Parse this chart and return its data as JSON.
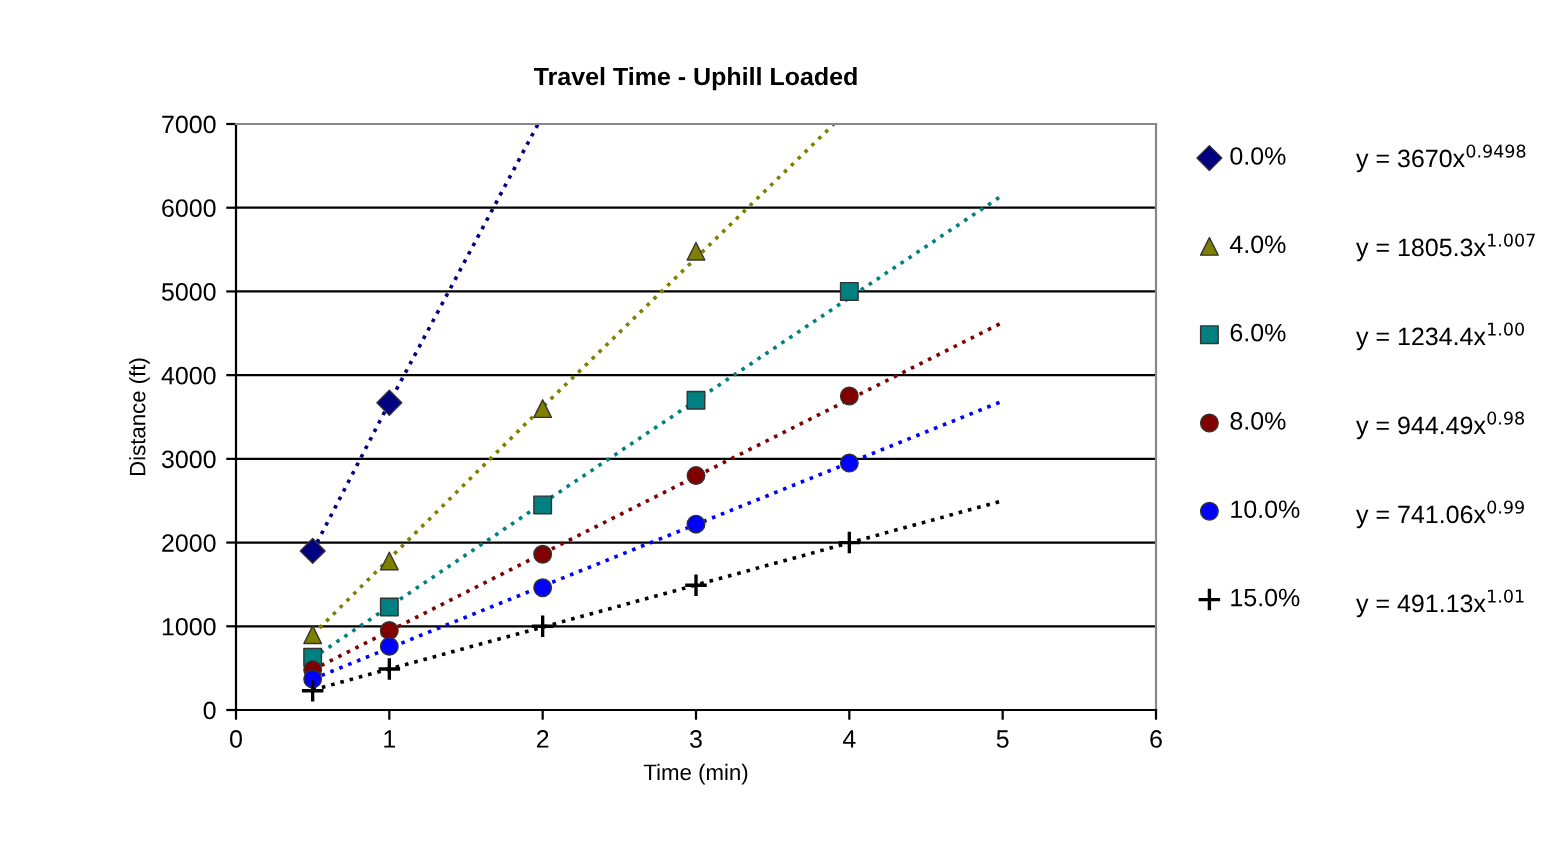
{
  "chart_data": {
    "type": "scatter",
    "title": "Travel Time - Uphill Loaded",
    "xlabel": "Time (min)",
    "ylabel": "Distance (ft)",
    "xlim": [
      0,
      6
    ],
    "xticks": [
      0,
      1,
      2,
      3,
      4,
      5,
      6
    ],
    "ylim": [
      0,
      7000
    ],
    "yticks": [
      0,
      1000,
      2000,
      3000,
      4000,
      5000,
      6000,
      7000
    ],
    "grid": "y",
    "legend": "right",
    "series": [
      {
        "name": "0.0%",
        "color": "#000080",
        "marker": "diamond",
        "x": [
          0.5,
          1
        ],
        "values": [
          1900,
          3670
        ]
      },
      {
        "name": "4.0%",
        "color": "#808000",
        "marker": "triangle",
        "x": [
          0.5,
          1,
          2,
          3
        ],
        "values": [
          900,
          1780,
          3600,
          5480
        ]
      },
      {
        "name": "6.0%",
        "color": "#008080",
        "marker": "square",
        "x": [
          0.5,
          1,
          2,
          3,
          4
        ],
        "values": [
          630,
          1230,
          2450,
          3700,
          5000
        ]
      },
      {
        "name": "8.0%",
        "color": "#800000",
        "marker": "circle",
        "x": [
          0.5,
          1,
          2,
          3,
          4
        ],
        "values": [
          480,
          950,
          1860,
          2800,
          3750
        ]
      },
      {
        "name": "10.0%",
        "color": "#0000ff",
        "marker": "circle",
        "x": [
          0.5,
          1,
          2,
          3,
          4
        ],
        "values": [
          370,
          760,
          1460,
          2220,
          2950
        ]
      },
      {
        "name": "15.0%",
        "color": "#000000",
        "marker": "cross",
        "x": [
          0.5,
          1,
          2,
          3,
          4
        ],
        "values": [
          230,
          490,
          1000,
          1490,
          2000
        ]
      },
      {
        "type": "line",
        "line_style": "dotted",
        "color": "#000080",
        "x": [
          0.5,
          1,
          1.97
        ],
        "values": [
          1900,
          3670,
          7000
        ]
      },
      {
        "type": "line",
        "line_style": "dotted",
        "color": "#808000",
        "x": [
          0.5,
          2,
          3.9
        ],
        "values": [
          900,
          3620,
          7000
        ]
      },
      {
        "type": "line",
        "line_style": "dotted",
        "color": "#008080",
        "x": [
          0.5,
          2,
          5
        ],
        "values": [
          620,
          2470,
          6150
        ]
      },
      {
        "type": "line",
        "line_style": "dotted",
        "color": "#800000",
        "x": [
          0.5,
          2,
          5
        ],
        "values": [
          480,
          1870,
          4630
        ]
      },
      {
        "type": "line",
        "line_style": "dotted",
        "color": "#0000ff",
        "x": [
          0.5,
          2,
          5
        ],
        "values": [
          370,
          1480,
          3690
        ]
      },
      {
        "type": "line",
        "line_style": "dotted",
        "color": "#000000",
        "x": [
          0.5,
          2,
          5
        ],
        "values": [
          240,
          990,
          2500
        ]
      }
    ],
    "annotations": [
      "y = 3670x$^{0.9498}$",
      "y = 1805.3x$^{1.007}$",
      "y = 1234.4x$^{1.00}$",
      "y = 944.49x$^{0.98}$",
      "y = 741.06x$^{0.99}$",
      "y = 491.13x$^{1.01}$"
    ]
  }
}
